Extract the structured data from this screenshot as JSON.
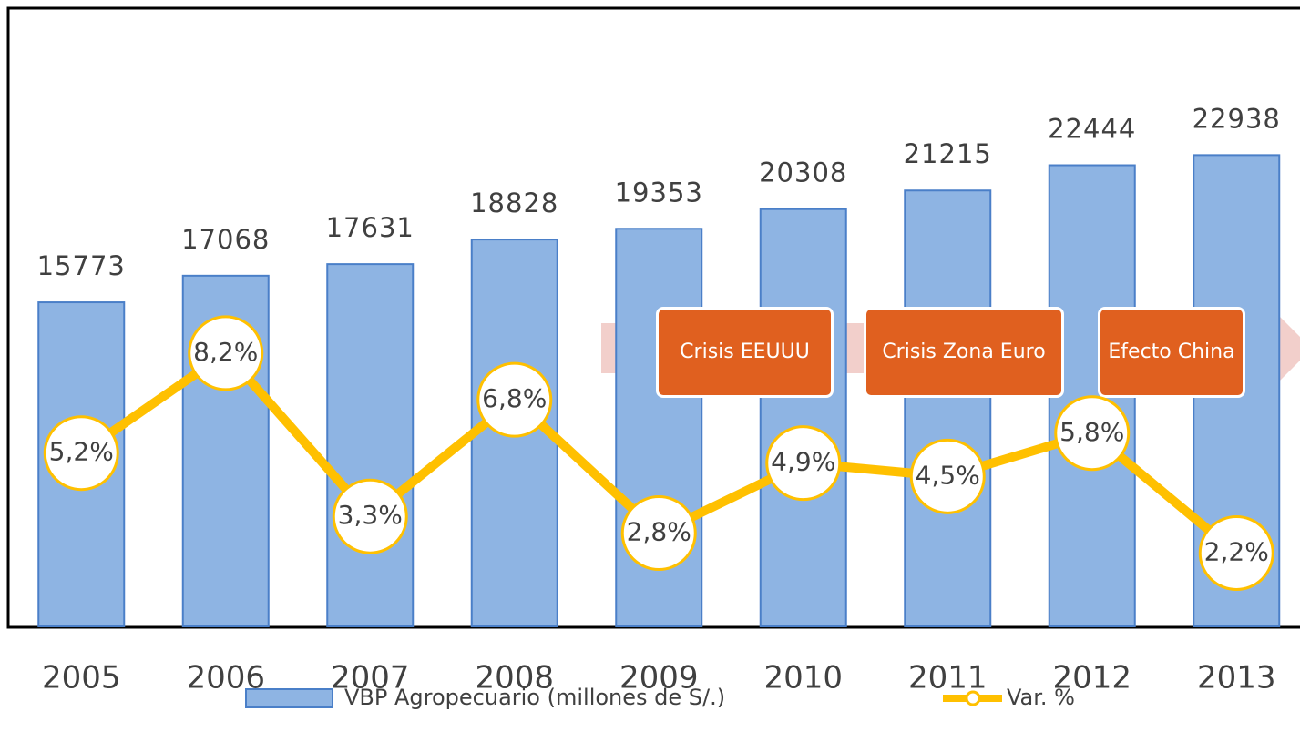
{
  "chart_data": {
    "type": "bar-line",
    "categories": [
      "2005",
      "2006",
      "2007",
      "2008",
      "2009",
      "2010",
      "2011",
      "2012",
      "2013"
    ],
    "series": [
      {
        "name": "VBP Agropecuario (millones de S/.)",
        "type": "bar",
        "color": "#8eb4e3",
        "values": [
          15773,
          17068,
          17631,
          18828,
          19353,
          20308,
          21215,
          22444,
          22938
        ]
      },
      {
        "name": "Var. %",
        "type": "line",
        "axis": "y2",
        "color": "#ffc000",
        "values": [
          5.2,
          8.2,
          3.3,
          6.8,
          2.8,
          4.9,
          4.5,
          5.8,
          2.2
        ],
        "value_labels": [
          "5,2%",
          "8,2%",
          "3,3%",
          "6,8%",
          "2,8%",
          "4,9%",
          "4,5%",
          "5,8%",
          "2,2%"
        ]
      }
    ],
    "ylim": [
      0,
      30000
    ],
    "y2lim": [
      0,
      18.5
    ],
    "annotations": [
      "Crisis EEUUU",
      "Crisis Zona Euro",
      "Efecto China"
    ],
    "legend": "bottom"
  }
}
